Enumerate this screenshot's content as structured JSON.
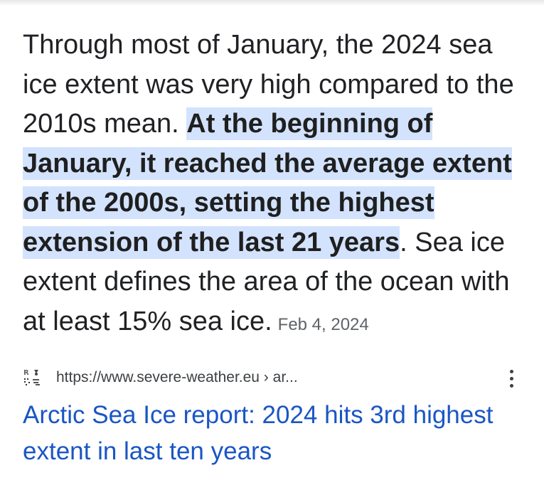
{
  "snippet": {
    "text_before": "Through most of January, the 2024 sea ice extent was very high compared to the 2010s mean. ",
    "highlighted": "At the beginning of January, it reached the average extent of the 2000s, setting the highest extension of the last 21 years",
    "text_after": ". Sea ice extent defines the area of the ocean with at least 15% sea ice.",
    "date": "Feb 4, 2024"
  },
  "source": {
    "url": "https://www.severe-weather.eu › ar...",
    "favicon": "severe-weather-favicon-icon"
  },
  "result": {
    "title": "Arctic Sea Ice report: 2024 hits 3rd highest extent in last ten years"
  },
  "menu_icon": "more-vert-icon",
  "colors": {
    "highlight": "#d3e3fd",
    "link": "#1a56c4",
    "text": "#202124",
    "muted": "#5f6368"
  }
}
